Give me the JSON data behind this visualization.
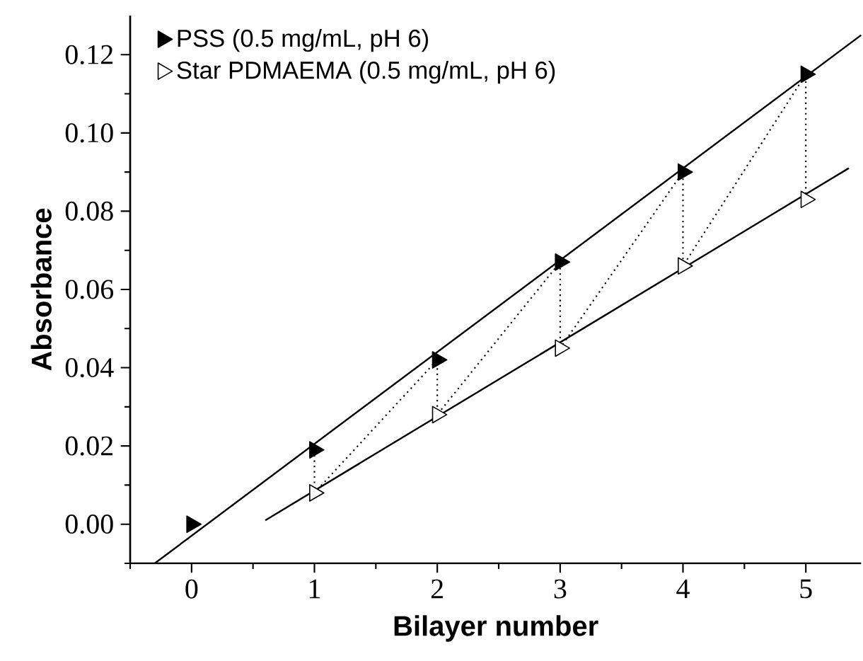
{
  "chart_data": {
    "type": "scatter",
    "xlabel": "Bilayer number",
    "ylabel": "Absorbance",
    "xlim": [
      -0.5,
      5.45
    ],
    "ylim": [
      -0.01,
      0.13
    ],
    "xticks": [
      {
        "value": -0.5,
        "label": null
      },
      0,
      {
        "value": 0.5,
        "label": null
      },
      1,
      {
        "value": 1.5,
        "label": null
      },
      2,
      {
        "value": 2.5,
        "label": null
      },
      3,
      {
        "value": 3.5,
        "label": null
      },
      4,
      {
        "value": 4.5,
        "label": null
      },
      5
    ],
    "yticks": [
      {
        "value": -0.01,
        "label": null
      },
      {
        "value": 0,
        "label": "0.00"
      },
      {
        "value": 0.01,
        "label": null
      },
      {
        "value": 0.02,
        "label": "0.02"
      },
      {
        "value": 0.03,
        "label": null
      },
      {
        "value": 0.04,
        "label": "0.04"
      },
      {
        "value": 0.05,
        "label": null
      },
      {
        "value": 0.06,
        "label": "0.06"
      },
      {
        "value": 0.07,
        "label": null
      },
      {
        "value": 0.08,
        "label": "0.08"
      },
      {
        "value": 0.09,
        "label": null
      },
      {
        "value": 0.1,
        "label": "0.10"
      },
      {
        "value": 0.11,
        "label": null
      },
      {
        "value": 0.12,
        "label": "0.12"
      }
    ],
    "legend": "top left",
    "marker": "triangle",
    "grid": false,
    "series": [
      {
        "name": "PSS (0.5 mg/mL, pH 6)",
        "color": "#000000",
        "x": [
          0,
          1,
          2,
          3,
          4,
          5
        ],
        "values": [
          0.0,
          0.019,
          0.042,
          0.067,
          0.09,
          0.115
        ]
      },
      {
        "name": "Star PDMAEMA (0.5 mg/mL, pH 6)",
        "color": "#ffffff",
        "x": [
          1,
          2,
          3,
          4,
          5
        ],
        "values": [
          0.008,
          0.028,
          0.045,
          0.066,
          0.083
        ]
      },
      {
        "type": "line",
        "marker": "none",
        "color": "#000000",
        "x": [
          -0.3,
          5.45
        ],
        "values": [
          -0.01,
          0.125
        ]
      },
      {
        "type": "line",
        "marker": "none",
        "color": "#000000",
        "x": [
          0.6,
          5.35
        ],
        "values": [
          0.001,
          0.091
        ]
      },
      {
        "type": "line",
        "marker": "none",
        "line_style": "dotted",
        "color": "#000000",
        "x": [
          1,
          1,
          2,
          2,
          3,
          3,
          4,
          4,
          5,
          5
        ],
        "values": [
          0.019,
          0.008,
          0.042,
          0.028,
          0.067,
          0.045,
          0.09,
          0.066,
          0.115,
          0.083
        ]
      }
    ]
  }
}
